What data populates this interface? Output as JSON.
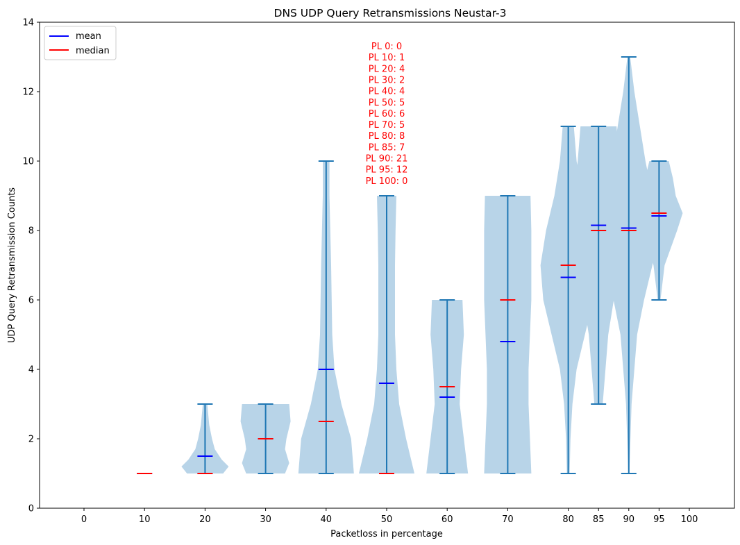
{
  "chart_data": {
    "type": "violin",
    "title": "DNS UDP Query Retransmissions Neustar-3",
    "xlabel": "Packetloss in percentage",
    "ylabel": "UDP Query Retransmission Counts",
    "ylim": [
      0,
      14
    ],
    "yticks": [
      0,
      2,
      4,
      6,
      8,
      10,
      12,
      14
    ],
    "xticks": [
      0,
      10,
      20,
      30,
      40,
      50,
      60,
      70,
      80,
      85,
      90,
      95,
      100
    ],
    "grid": false,
    "legend": {
      "placement": "top-left",
      "entries": [
        {
          "label": "mean",
          "color": "#0000ff"
        },
        {
          "label": "median",
          "color": "#ff0000"
        }
      ]
    },
    "colors": {
      "violin_fill": "#b8d4e8",
      "whisker": "#1f77b4",
      "mean": "#0000ff",
      "median": "#ff0000",
      "annotation": "#ff0000"
    },
    "annotation_lines": [
      "PL 0: 0",
      "PL 10: 1",
      "PL 20: 4",
      "PL 30: 2",
      "PL 40: 4",
      "PL 50: 5",
      "PL 60: 6",
      "PL 70: 5",
      "PL 80: 8",
      "PL 85: 7",
      "PL 90: 21",
      "PL 95: 12",
      "PL 100: 0"
    ],
    "violins": [
      {
        "x": 10,
        "min": 1,
        "max": 1,
        "mean": 1,
        "median": 1,
        "shape": []
      },
      {
        "x": 20,
        "min": 1,
        "max": 3,
        "mean": 1.5,
        "median": 1,
        "shape": [
          [
            1,
            0.65
          ],
          [
            1.2,
            0.85
          ],
          [
            1.4,
            0.6
          ],
          [
            1.7,
            0.35
          ],
          [
            2,
            0.25
          ],
          [
            2.4,
            0.15
          ],
          [
            3,
            0.08
          ]
        ]
      },
      {
        "x": 30,
        "min": 1,
        "max": 3,
        "mean": 2,
        "median": 2,
        "shape": [
          [
            1,
            0.7
          ],
          [
            1.3,
            0.85
          ],
          [
            1.7,
            0.7
          ],
          [
            2,
            0.75
          ],
          [
            2.5,
            0.9
          ],
          [
            3,
            0.85
          ]
        ]
      },
      {
        "x": 40,
        "min": 1,
        "max": 10,
        "mean": 4,
        "median": 2.5,
        "shape": [
          [
            1,
            1.0
          ],
          [
            2,
            0.9
          ],
          [
            3,
            0.55
          ],
          [
            4,
            0.3
          ],
          [
            5,
            0.22
          ],
          [
            6,
            0.2
          ],
          [
            7,
            0.18
          ],
          [
            8,
            0.15
          ],
          [
            9,
            0.12
          ],
          [
            10,
            0.12
          ]
        ]
      },
      {
        "x": 50,
        "min": 1,
        "max": 9,
        "mean": 3.6,
        "median": 1,
        "shape": [
          [
            1,
            1.0
          ],
          [
            2,
            0.7
          ],
          [
            3,
            0.45
          ],
          [
            4,
            0.35
          ],
          [
            5,
            0.3
          ],
          [
            6,
            0.3
          ],
          [
            7,
            0.3
          ],
          [
            8,
            0.32
          ],
          [
            9,
            0.35
          ]
        ]
      },
      {
        "x": 60,
        "min": 1,
        "max": 6,
        "mean": 3.2,
        "median": 3.5,
        "shape": [
          [
            1,
            0.75
          ],
          [
            2,
            0.6
          ],
          [
            3,
            0.45
          ],
          [
            4,
            0.5
          ],
          [
            5,
            0.6
          ],
          [
            6,
            0.55
          ]
        ]
      },
      {
        "x": 70,
        "min": 1,
        "max": 9,
        "mean": 4.8,
        "median": 6,
        "shape": [
          [
            1,
            0.85
          ],
          [
            2,
            0.8
          ],
          [
            3,
            0.75
          ],
          [
            4,
            0.75
          ],
          [
            5,
            0.8
          ],
          [
            6,
            0.85
          ],
          [
            7,
            0.85
          ],
          [
            8,
            0.85
          ],
          [
            9,
            0.82
          ]
        ]
      },
      {
        "x": 80,
        "min": 1,
        "max": 11,
        "mean": 6.65,
        "median": 7,
        "shape": [
          [
            1,
            0.05
          ],
          [
            2,
            0.08
          ],
          [
            3,
            0.15
          ],
          [
            4,
            0.3
          ],
          [
            5,
            0.6
          ],
          [
            6,
            0.9
          ],
          [
            7,
            1.0
          ],
          [
            8,
            0.8
          ],
          [
            9,
            0.5
          ],
          [
            10,
            0.3
          ],
          [
            11,
            0.2
          ]
        ]
      },
      {
        "x": 85,
        "min": 3,
        "max": 11,
        "mean": 8.15,
        "median": 8,
        "shape": [
          [
            3,
            0.15
          ],
          [
            4,
            0.25
          ],
          [
            5,
            0.35
          ],
          [
            6,
            0.55
          ],
          [
            7,
            0.9
          ],
          [
            8,
            1.0
          ],
          [
            9,
            0.9
          ],
          [
            10,
            0.75
          ],
          [
            11,
            0.65
          ]
        ]
      },
      {
        "x": 90,
        "min": 1,
        "max": 13,
        "mean": 8.07,
        "median": 8,
        "shape": [
          [
            1,
            0.02
          ],
          [
            3,
            0.1
          ],
          [
            5,
            0.3
          ],
          [
            6,
            0.55
          ],
          [
            7,
            0.85
          ],
          [
            8,
            1.0
          ],
          [
            9,
            0.85
          ],
          [
            10,
            0.6
          ],
          [
            11,
            0.4
          ],
          [
            12,
            0.2
          ],
          [
            13,
            0.05
          ]
        ]
      },
      {
        "x": 95,
        "min": 6,
        "max": 10,
        "mean": 8.42,
        "median": 8.5,
        "shape": [
          [
            6,
            0.05
          ],
          [
            7,
            0.2
          ],
          [
            8,
            0.65
          ],
          [
            8.5,
            0.85
          ],
          [
            9,
            0.6
          ],
          [
            9.5,
            0.5
          ],
          [
            10,
            0.35
          ]
        ]
      }
    ]
  }
}
